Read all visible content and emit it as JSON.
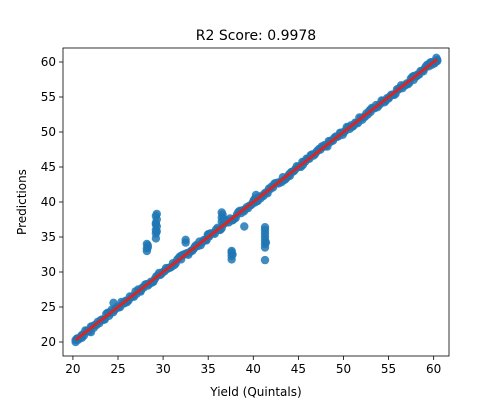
{
  "chart_data": {
    "type": "scatter",
    "title": "R2 Score: 0.9978",
    "xlabel": "Yield (Quintals)",
    "ylabel": "Predictions",
    "xlim": [
      18.9,
      61.7
    ],
    "ylim": [
      18.0,
      62.0
    ],
    "xticks": [
      20,
      25,
      30,
      35,
      40,
      45,
      50,
      55,
      60
    ],
    "yticks": [
      20,
      25,
      30,
      35,
      40,
      45,
      50,
      55,
      60
    ],
    "grid": false,
    "series": [
      {
        "role": "points",
        "color": "#1f77b4",
        "diagonal_band": {
          "x_start": 20.3,
          "x_end": 60.4,
          "spread": 0.35
        },
        "points": [
          [
            20.3,
            20.0
          ],
          [
            20.5,
            20.5
          ],
          [
            21.0,
            20.6
          ],
          [
            21.8,
            21.5
          ],
          [
            22.0,
            21.4
          ],
          [
            24.0,
            24.2
          ],
          [
            24.5,
            25.6
          ],
          [
            26.0,
            25.7
          ],
          [
            27.5,
            27.2
          ],
          [
            28.2,
            33.0
          ],
          [
            28.2,
            33.4
          ],
          [
            28.3,
            33.8
          ],
          [
            28.2,
            34.0
          ],
          [
            28.3,
            33.5
          ],
          [
            29.2,
            34.8
          ],
          [
            29.2,
            35.5
          ],
          [
            29.2,
            36.0
          ],
          [
            29.3,
            36.5
          ],
          [
            29.2,
            37.0
          ],
          [
            29.3,
            37.5
          ],
          [
            29.2,
            38.0
          ],
          [
            29.3,
            38.3
          ],
          [
            29.2,
            36.8
          ],
          [
            29.3,
            35.8
          ],
          [
            32.0,
            31.8
          ],
          [
            32.5,
            34.2
          ],
          [
            32.5,
            34.6
          ],
          [
            33.5,
            33.5
          ],
          [
            35.0,
            35.0
          ],
          [
            35.0,
            35.4
          ],
          [
            34.8,
            34.6
          ],
          [
            36.5,
            37.2
          ],
          [
            36.5,
            37.8
          ],
          [
            36.6,
            38.2
          ],
          [
            36.5,
            38.5
          ],
          [
            36.7,
            37.6
          ],
          [
            37.6,
            31.8
          ],
          [
            37.6,
            32.3
          ],
          [
            37.6,
            32.8
          ],
          [
            37.6,
            33.0
          ],
          [
            37.7,
            32.5
          ],
          [
            39.0,
            36.5
          ],
          [
            40.0,
            40.0
          ],
          [
            40.2,
            40.5
          ],
          [
            40.3,
            41.0
          ],
          [
            41.3,
            34.0
          ],
          [
            41.3,
            34.5
          ],
          [
            41.3,
            35.0
          ],
          [
            41.3,
            35.5
          ],
          [
            41.3,
            36.0
          ],
          [
            41.3,
            33.5
          ],
          [
            41.4,
            34.2
          ],
          [
            41.3,
            31.7
          ],
          [
            41.3,
            36.4
          ],
          [
            44.0,
            44.0
          ],
          [
            45.5,
            45.3
          ],
          [
            48.5,
            48.6
          ],
          [
            51.0,
            50.8
          ],
          [
            53.0,
            53.2
          ],
          [
            55.0,
            54.8
          ],
          [
            57.8,
            58.0
          ],
          [
            58.2,
            58.2
          ],
          [
            59.8,
            59.6
          ],
          [
            60.1,
            60.0
          ],
          [
            60.4,
            60.3
          ],
          [
            60.3,
            60.6
          ]
        ]
      },
      {
        "role": "fit-line",
        "color": "#d62728",
        "x": [
          20.3,
          60.4
        ],
        "y": [
          20.3,
          60.4
        ]
      }
    ]
  }
}
